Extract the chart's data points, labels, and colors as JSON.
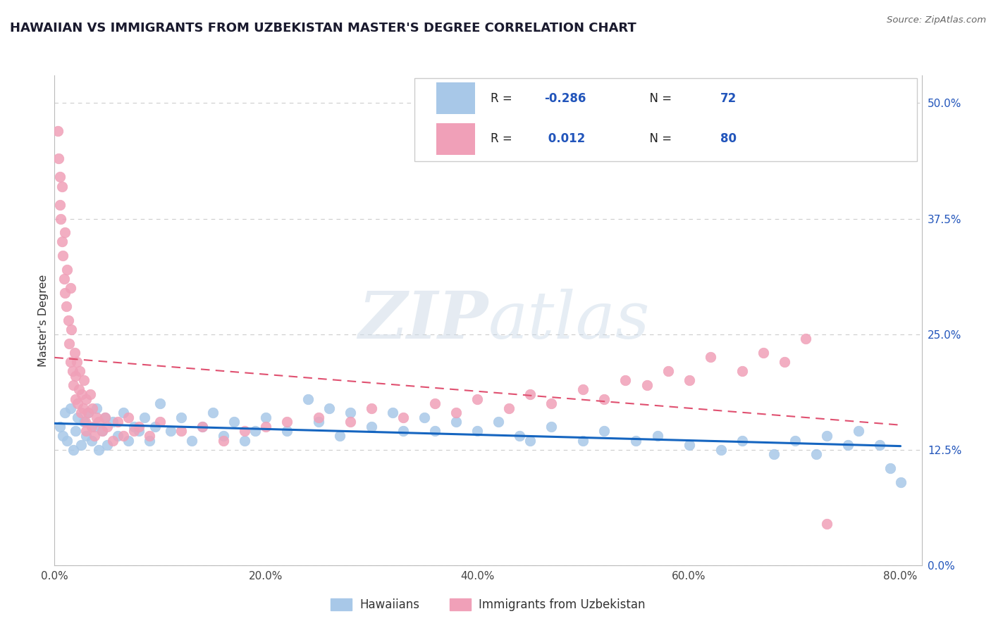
{
  "title": "HAWAIIAN VS IMMIGRANTS FROM UZBEKISTAN MASTER'S DEGREE CORRELATION CHART",
  "source": "Source: ZipAtlas.com",
  "xlabel_ticks": [
    "0.0%",
    "20.0%",
    "40.0%",
    "60.0%",
    "80.0%"
  ],
  "xlabel_vals": [
    0.0,
    20.0,
    40.0,
    60.0,
    80.0
  ],
  "ylabel": "Master's Degree",
  "ylabel_ticks": [
    "0.0%",
    "12.5%",
    "25.0%",
    "37.5%",
    "50.0%"
  ],
  "ylabel_vals": [
    0.0,
    12.5,
    25.0,
    37.5,
    50.0
  ],
  "xlim": [
    0,
    82
  ],
  "ylim": [
    0,
    53
  ],
  "hawaiians_R": -0.286,
  "hawaiians_N": 72,
  "uzbekistan_R": 0.012,
  "uzbekistan_N": 80,
  "scatter_color_blue": "#a8c8e8",
  "scatter_color_pink": "#f0a0b8",
  "trend_color_blue": "#1565c0",
  "trend_color_pink": "#e05070",
  "legend_label_1": "Hawaiians",
  "legend_label_2": "Immigrants from Uzbekistan",
  "watermark_zip": "ZIP",
  "watermark_atlas": "atlas",
  "hawaiians_x": [
    0.5,
    0.8,
    1.0,
    1.2,
    1.5,
    1.8,
    2.0,
    2.2,
    2.5,
    2.8,
    3.0,
    3.2,
    3.5,
    3.8,
    4.0,
    4.2,
    4.5,
    4.8,
    5.0,
    5.5,
    6.0,
    6.5,
    7.0,
    7.5,
    8.0,
    8.5,
    9.0,
    9.5,
    10.0,
    11.0,
    12.0,
    13.0,
    14.0,
    15.0,
    16.0,
    17.0,
    18.0,
    19.0,
    20.0,
    22.0,
    24.0,
    25.0,
    26.0,
    27.0,
    28.0,
    30.0,
    32.0,
    33.0,
    35.0,
    36.0,
    38.0,
    40.0,
    42.0,
    44.0,
    45.0,
    47.0,
    50.0,
    52.0,
    55.0,
    57.0,
    60.0,
    63.0,
    65.0,
    68.0,
    70.0,
    72.0,
    73.0,
    75.0,
    76.0,
    78.0,
    79.0,
    80.0
  ],
  "hawaiians_y": [
    15.0,
    14.0,
    16.5,
    13.5,
    17.0,
    12.5,
    14.5,
    16.0,
    13.0,
    15.5,
    14.0,
    16.5,
    13.5,
    15.0,
    17.0,
    12.5,
    14.5,
    16.0,
    13.0,
    15.5,
    14.0,
    16.5,
    13.5,
    15.0,
    14.5,
    16.0,
    13.5,
    15.0,
    17.5,
    14.5,
    16.0,
    13.5,
    15.0,
    16.5,
    14.0,
    15.5,
    13.5,
    14.5,
    16.0,
    14.5,
    18.0,
    15.5,
    17.0,
    14.0,
    16.5,
    15.0,
    16.5,
    14.5,
    16.0,
    14.5,
    15.5,
    14.5,
    15.5,
    14.0,
    13.5,
    15.0,
    13.5,
    14.5,
    13.5,
    14.0,
    13.0,
    12.5,
    13.5,
    12.0,
    13.5,
    12.0,
    14.0,
    13.0,
    14.5,
    13.0,
    10.5,
    9.0
  ],
  "uzbekistan_x": [
    0.3,
    0.4,
    0.5,
    0.5,
    0.6,
    0.7,
    0.7,
    0.8,
    0.9,
    1.0,
    1.0,
    1.1,
    1.2,
    1.3,
    1.4,
    1.5,
    1.5,
    1.6,
    1.7,
    1.8,
    1.9,
    2.0,
    2.0,
    2.1,
    2.2,
    2.3,
    2.4,
    2.5,
    2.6,
    2.7,
    2.8,
    2.9,
    3.0,
    3.0,
    3.2,
    3.4,
    3.5,
    3.6,
    3.8,
    4.0,
    4.2,
    4.5,
    4.8,
    5.0,
    5.5,
    6.0,
    6.5,
    7.0,
    7.5,
    8.0,
    9.0,
    10.0,
    12.0,
    14.0,
    16.0,
    18.0,
    20.0,
    22.0,
    25.0,
    28.0,
    30.0,
    33.0,
    36.0,
    38.0,
    40.0,
    43.0,
    45.0,
    47.0,
    50.0,
    52.0,
    54.0,
    56.0,
    58.0,
    60.0,
    62.0,
    65.0,
    67.0,
    69.0,
    71.0,
    73.0
  ],
  "uzbekistan_y": [
    47.0,
    44.0,
    42.0,
    39.0,
    37.5,
    41.0,
    35.0,
    33.5,
    31.0,
    36.0,
    29.5,
    28.0,
    32.0,
    26.5,
    24.0,
    30.0,
    22.0,
    25.5,
    21.0,
    19.5,
    23.0,
    18.0,
    20.5,
    22.0,
    17.5,
    19.0,
    21.0,
    16.5,
    18.5,
    17.0,
    20.0,
    15.5,
    18.0,
    14.5,
    16.5,
    18.5,
    15.0,
    17.0,
    14.0,
    16.0,
    15.5,
    14.5,
    16.0,
    15.0,
    13.5,
    15.5,
    14.0,
    16.0,
    14.5,
    15.0,
    14.0,
    15.5,
    14.5,
    15.0,
    13.5,
    14.5,
    15.0,
    15.5,
    16.0,
    15.5,
    17.0,
    16.0,
    17.5,
    16.5,
    18.0,
    17.0,
    18.5,
    17.5,
    19.0,
    18.0,
    20.0,
    19.5,
    21.0,
    20.0,
    22.5,
    21.0,
    23.0,
    22.0,
    24.5,
    4.5
  ]
}
